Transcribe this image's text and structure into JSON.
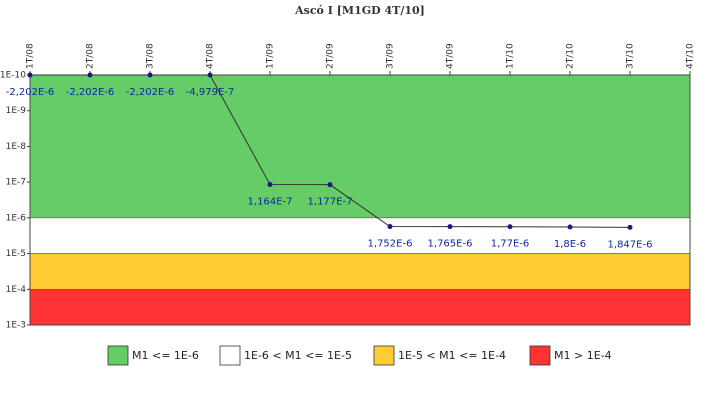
{
  "chart_data": {
    "type": "line",
    "title": "Ascó I [M1GD 4T/10]",
    "categories": [
      "1T/08",
      "2T/08",
      "3T/08",
      "4T/08",
      "1T/09",
      "2T/09",
      "3T/09",
      "4T/09",
      "1T/10",
      "2T/10",
      "3T/10",
      "4T/10"
    ],
    "series": [
      {
        "name": "M1",
        "color": "#333333",
        "marker_color": "#1a1a80",
        "values": [
          -2.202e-06,
          -2.202e-06,
          -2.202e-06,
          -4.979e-07,
          1.164e-07,
          1.177e-07,
          1.752e-06,
          1.765e-06,
          1.77e-06,
          1.8e-06,
          1.847e-06,
          null
        ],
        "value_labels": [
          "-2,202E-6",
          "-2,202E-6",
          "-2,202E-6",
          "-4,979E-7",
          "1,164E-7",
          "1,177E-7",
          "1,752E-6",
          "1,765E-6",
          "1,77E-6",
          "1,8E-6",
          "1,847E-6",
          null
        ]
      }
    ],
    "log_scale": true,
    "y_inverted": true,
    "ylim": [
      1e-10,
      0.001
    ],
    "yticks": [
      {
        "value": 1e-10,
        "label": "1E-10"
      },
      {
        "value": 1e-09,
        "label": "1E-9"
      },
      {
        "value": 1e-08,
        "label": "1E-8"
      },
      {
        "value": 1e-07,
        "label": "1E-7"
      },
      {
        "value": 1e-06,
        "label": "1E-6"
      },
      {
        "value": 1e-05,
        "label": "1E-5"
      },
      {
        "value": 0.0001,
        "label": "1E-4"
      },
      {
        "value": 0.001,
        "label": "1E-3"
      }
    ],
    "bands": [
      {
        "name": "M1 <= 1E-6",
        "color": "#66cc66",
        "from": 1e-10,
        "to": 1e-06
      },
      {
        "name": "1E-6 < M1 <= 1E-5",
        "color": "#ffffff",
        "from": 1e-06,
        "to": 1e-05
      },
      {
        "name": "1E-5 < M1 <= 1E-4",
        "color": "#ffcc33",
        "from": 1e-05,
        "to": 0.0001
      },
      {
        "name": "M1 > 1E-4",
        "color": "#ff3333",
        "from": 0.0001,
        "to": 0.001
      }
    ]
  }
}
